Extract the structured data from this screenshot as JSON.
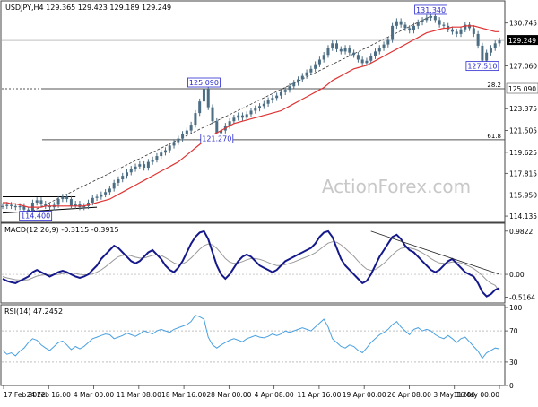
{
  "chart_data": [
    {
      "type": "line",
      "subtype": "candlestick",
      "pane": "price",
      "title": "USDJPY,H4 129.365 129.423 129.189 129.249",
      "y_ticks": [
        "130.745",
        "129.249",
        "127.060",
        "125.090",
        "123.375",
        "121.505",
        "119.625",
        "117.815",
        "115.950",
        "114.135"
      ],
      "ylim": [
        113.6,
        131.8
      ],
      "last_price": "129.249",
      "fib_levels": [
        {
          "label": "28.2",
          "value": 125.09,
          "value_label": "125.090"
        },
        {
          "label": "61.8",
          "value": 120.7
        }
      ],
      "price_labels": [
        {
          "text": "131.340",
          "value": 131.34
        },
        {
          "text": "125.090",
          "value": 125.09
        },
        {
          "text": "121.270",
          "value": 121.27
        },
        {
          "text": "127.510",
          "value": 127.51
        },
        {
          "text": "114.400",
          "value": 114.4
        }
      ],
      "watermark": "ActionForex.com",
      "series": [
        {
          "values": [
            115.0,
            115.1,
            115.0,
            114.9,
            115.0,
            114.7,
            114.4,
            115.3,
            115.5,
            115.2,
            115.0,
            114.9,
            115.1,
            115.6,
            115.8,
            115.6,
            115.0,
            115.2,
            114.9,
            115.0,
            115.3,
            115.7,
            115.8,
            116.0,
            116.2,
            116.5,
            117.0,
            117.3,
            117.6,
            117.9,
            118.2,
            118.4,
            118.6,
            118.3,
            118.8,
            119.0,
            119.3,
            119.6,
            119.8,
            120.2,
            120.5,
            120.8,
            121.2,
            121.5,
            122.0,
            123.0,
            124.0,
            125.09,
            123.5,
            122.3,
            121.27,
            121.5,
            121.9,
            122.3,
            122.6,
            122.8,
            122.6,
            122.9,
            123.2,
            123.4,
            123.6,
            123.8,
            124.1,
            124.3,
            124.5,
            124.8,
            125.0,
            125.3,
            125.6,
            125.9,
            126.2,
            126.5,
            126.8,
            127.2,
            127.6,
            128.0,
            128.6,
            129.0,
            128.5,
            128.3,
            128.6,
            128.2,
            128.0,
            127.6,
            127.3,
            127.5,
            127.9,
            128.3,
            128.6,
            128.9,
            129.3,
            130.5,
            130.9,
            130.6,
            130.3,
            130.1,
            130.5,
            130.8,
            131.0,
            131.2,
            131.34,
            131.0,
            130.6,
            130.5,
            130.2,
            130.0,
            129.8,
            130.2,
            130.6,
            130.3,
            129.8,
            128.8,
            127.51,
            128.2,
            128.6,
            129.0,
            129.25
          ]
        },
        {
          "name": "MA",
          "values": [
            115.3,
            115.3,
            115.2,
            115.2,
            115.1,
            115.0,
            114.9,
            114.9,
            114.9,
            114.9,
            115.0,
            115.0,
            115.0,
            115.0,
            115.0,
            115.0,
            115.0,
            115.0,
            115.0,
            115.0,
            115.1,
            115.2,
            115.3,
            115.4,
            115.5,
            115.6,
            115.8,
            116.0,
            116.2,
            116.4,
            116.6,
            116.8,
            117.0,
            117.2,
            117.4,
            117.6,
            117.8,
            118.0,
            118.2,
            118.4,
            118.6,
            118.8,
            119.1,
            119.4,
            119.7,
            120.0,
            120.3,
            120.6,
            120.9,
            121.1,
            121.3,
            121.5,
            121.7,
            121.9,
            122.1,
            122.2,
            122.3,
            122.4,
            122.5,
            122.6,
            122.7,
            122.8,
            122.9,
            123.0,
            123.1,
            123.2,
            123.4,
            123.6,
            123.8,
            124.0,
            124.2,
            124.4,
            124.6,
            124.8,
            125.0,
            125.2,
            125.5,
            125.8,
            126.0,
            126.2,
            126.4,
            126.6,
            126.8,
            126.9,
            127.0,
            127.1,
            127.3,
            127.5,
            127.7,
            127.9,
            128.1,
            128.3,
            128.5,
            128.7,
            128.9,
            129.1,
            129.3,
            129.5,
            129.7,
            129.9,
            130.0,
            130.1,
            130.2,
            130.3,
            130.3,
            130.4,
            130.4,
            130.4,
            130.5,
            130.5,
            130.5,
            130.4,
            130.3,
            130.2,
            130.1,
            130.0,
            130.0
          ]
        }
      ]
    },
    {
      "type": "line",
      "pane": "macd",
      "title": "MACD(12,26,9) -0.3115 -0.3915",
      "y_ticks": [
        "0.9822",
        "0.00",
        "-0.5164"
      ],
      "ylim": [
        -0.65,
        1.1
      ],
      "series": [
        {
          "name": "MACD",
          "values": [
            -0.1,
            -0.15,
            -0.18,
            -0.2,
            -0.15,
            -0.1,
            -0.05,
            0.05,
            0.1,
            0.05,
            0.0,
            -0.05,
            0.0,
            0.05,
            0.08,
            0.05,
            0.0,
            -0.05,
            -0.08,
            -0.05,
            0.0,
            0.1,
            0.2,
            0.35,
            0.45,
            0.55,
            0.65,
            0.6,
            0.5,
            0.4,
            0.3,
            0.25,
            0.3,
            0.4,
            0.5,
            0.55,
            0.45,
            0.35,
            0.2,
            0.1,
            0.05,
            0.15,
            0.3,
            0.5,
            0.7,
            0.85,
            0.95,
            0.98,
            0.8,
            0.5,
            0.2,
            0.0,
            -0.1,
            0.0,
            0.15,
            0.3,
            0.4,
            0.45,
            0.4,
            0.3,
            0.2,
            0.15,
            0.1,
            0.05,
            0.1,
            0.2,
            0.3,
            0.35,
            0.4,
            0.45,
            0.5,
            0.55,
            0.6,
            0.7,
            0.85,
            0.95,
            0.98,
            0.85,
            0.6,
            0.35,
            0.2,
            0.1,
            0.0,
            -0.1,
            -0.2,
            -0.15,
            0.0,
            0.2,
            0.4,
            0.55,
            0.7,
            0.85,
            0.9,
            0.8,
            0.65,
            0.55,
            0.5,
            0.4,
            0.3,
            0.2,
            0.1,
            0.05,
            0.1,
            0.2,
            0.3,
            0.35,
            0.25,
            0.15,
            0.05,
            0.0,
            -0.05,
            -0.2,
            -0.4,
            -0.5,
            -0.45,
            -0.35,
            -0.31
          ]
        },
        {
          "name": "Signal",
          "values": [
            -0.05,
            -0.08,
            -0.1,
            -0.12,
            -0.13,
            -0.13,
            -0.12,
            -0.08,
            -0.04,
            -0.02,
            -0.01,
            -0.01,
            -0.01,
            0.0,
            0.02,
            0.03,
            0.03,
            0.02,
            0.0,
            -0.01,
            -0.01,
            0.01,
            0.05,
            0.1,
            0.17,
            0.25,
            0.33,
            0.4,
            0.43,
            0.44,
            0.42,
            0.39,
            0.37,
            0.37,
            0.4,
            0.43,
            0.44,
            0.43,
            0.38,
            0.32,
            0.26,
            0.23,
            0.24,
            0.29,
            0.37,
            0.47,
            0.57,
            0.65,
            0.69,
            0.67,
            0.59,
            0.48,
            0.36,
            0.28,
            0.25,
            0.26,
            0.29,
            0.33,
            0.36,
            0.36,
            0.34,
            0.31,
            0.27,
            0.23,
            0.2,
            0.2,
            0.22,
            0.25,
            0.28,
            0.32,
            0.36,
            0.4,
            0.44,
            0.49,
            0.56,
            0.64,
            0.71,
            0.74,
            0.73,
            0.67,
            0.59,
            0.5,
            0.41,
            0.3,
            0.2,
            0.12,
            0.09,
            0.11,
            0.17,
            0.25,
            0.34,
            0.44,
            0.53,
            0.59,
            0.61,
            0.6,
            0.58,
            0.54,
            0.49,
            0.43,
            0.36,
            0.3,
            0.26,
            0.25,
            0.26,
            0.28,
            0.28,
            0.26,
            0.22,
            0.18,
            0.13,
            0.06,
            -0.03,
            -0.13,
            -0.2,
            -0.25,
            -0.39
          ]
        }
      ],
      "trendline": {
        "from": [
          86,
          0.98
        ],
        "to": [
          116,
          0.0
        ]
      }
    },
    {
      "type": "line",
      "pane": "rsi",
      "title": "RSI(14) 47.2452",
      "y_ticks": [
        "100",
        "70",
        "30",
        "0"
      ],
      "ylim": [
        0,
        100
      ],
      "levels": [
        70,
        30
      ],
      "series": [
        {
          "name": "RSI(14)",
          "values": [
            45,
            40,
            42,
            38,
            44,
            48,
            55,
            60,
            58,
            52,
            48,
            45,
            50,
            55,
            57,
            52,
            46,
            50,
            47,
            50,
            55,
            60,
            62,
            64,
            66,
            65,
            60,
            62,
            64,
            67,
            65,
            63,
            66,
            70,
            68,
            66,
            70,
            72,
            70,
            68,
            72,
            74,
            76,
            78,
            82,
            90,
            88,
            85,
            62,
            52,
            48,
            52,
            55,
            58,
            60,
            58,
            56,
            60,
            62,
            64,
            62,
            61,
            63,
            66,
            64,
            66,
            70,
            68,
            70,
            72,
            74,
            72,
            70,
            75,
            80,
            85,
            75,
            60,
            55,
            50,
            48,
            52,
            50,
            45,
            42,
            48,
            55,
            60,
            65,
            68,
            72,
            78,
            82,
            75,
            70,
            65,
            72,
            74,
            70,
            72,
            70,
            65,
            62,
            60,
            64,
            60,
            55,
            60,
            62,
            56,
            50,
            44,
            35,
            42,
            45,
            48,
            47
          ]
        }
      ]
    }
  ],
  "x_ticks": [
    "17 Feb 2022",
    "24 Feb 16:00",
    "4 Mar 00:00",
    "11 Mar 08:00",
    "18 Mar 16:00",
    "28 Mar 00:00",
    "4 Apr 08:00",
    "11 Apr 16:00",
    "19 Apr 00:00",
    "26 Apr 08:00",
    "3 May 16:00",
    "11 May 00:00"
  ],
  "colors": {
    "candle": "#4c6e85",
    "ma": "#e03333",
    "macd": "#15188a",
    "signal": "#9a9a9a",
    "rsi": "#4aa0e0",
    "label_border": "#2a2ad0",
    "current_bg": "#000000",
    "watermark": "#c8c8c8"
  }
}
